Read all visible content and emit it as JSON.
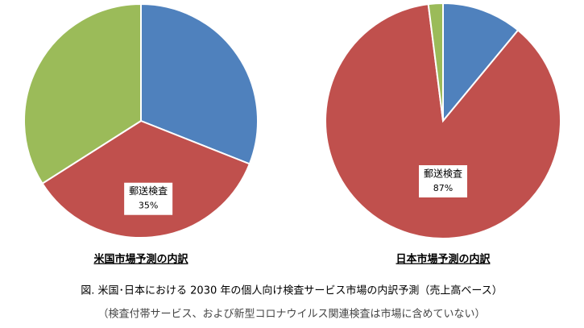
{
  "chart_data": [
    {
      "type": "pie",
      "title": "米国市場予測の内訳",
      "categories": [
        null,
        "郵送検査",
        null
      ],
      "values": [
        31,
        35,
        34
      ],
      "value_labels": [
        null,
        "35%",
        null
      ],
      "colors": [
        "#4f81bd",
        "#c0504d",
        "#9bbb59"
      ]
    },
    {
      "type": "pie",
      "title": "日本市場予測の内訳",
      "categories": [
        null,
        "郵送検査",
        null
      ],
      "values": [
        11,
        87,
        2
      ],
      "value_labels": [
        null,
        "87%",
        null
      ],
      "colors": [
        "#4f81bd",
        "#c0504d",
        "#9bbb59"
      ]
    }
  ],
  "caption": "図. 米国･日本における 2030 年の個人向け検査サービス市場の内訳予測（売上高ベース）",
  "note": "（検査付帯サービス、および新型コロナウイルス関連検査は市場に含めていない）"
}
